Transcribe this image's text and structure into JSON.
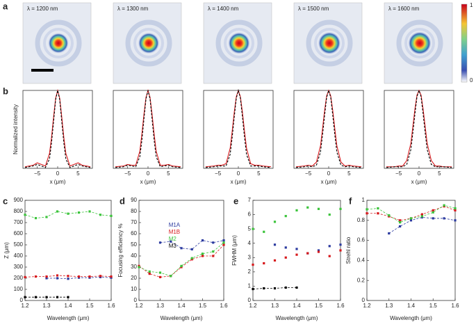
{
  "panel_a": {
    "letter": "a",
    "images": [
      {
        "label": "λ = 1200 nm"
      },
      {
        "label": "λ = 1300 nm"
      },
      {
        "label": "λ = 1400 nm"
      },
      {
        "label": "λ = 1500 nm"
      },
      {
        "label": "λ = 1600 nm"
      }
    ],
    "colorbar": {
      "max": 1,
      "min": 0
    }
  },
  "chart_data": [
    {
      "type": "line",
      "panel": "b",
      "ylabel": "Normalized intensity",
      "xlabel": "x (μm)",
      "xlim": [
        -8.5,
        8.5
      ],
      "ylim": [
        0,
        1
      ],
      "xticks": [
        {
          "value": -5,
          "label": "−5"
        },
        0,
        5
      ],
      "x": [
        -8,
        -6,
        -5,
        -4,
        -3,
        -2,
        -1.5,
        -1,
        -0.5,
        0,
        0.5,
        1,
        1.5,
        2,
        3,
        4,
        5,
        6,
        8
      ],
      "series": [
        {
          "color": "#d7191c",
          "linestyle": "solid",
          "values": [
            0.02,
            0.04,
            0.07,
            0.05,
            0.03,
            0.19,
            0.4,
            0.66,
            0.9,
            1,
            0.9,
            0.66,
            0.4,
            0.19,
            0.03,
            0.05,
            0.07,
            0.04,
            0.02
          ]
        },
        {
          "color": "#000000",
          "linestyle": "dashed",
          "values": [
            0.01,
            0.03,
            0.05,
            0.03,
            0.01,
            0.12,
            0.33,
            0.6,
            0.88,
            1,
            0.88,
            0.6,
            0.33,
            0.12,
            0.01,
            0.03,
            0.05,
            0.03,
            0.01
          ]
        }
      ]
    },
    {
      "type": "line",
      "xlabel": "x (μm)",
      "xlim": [
        -8.5,
        8.5
      ],
      "ylim": [
        0,
        1
      ],
      "xticks": [
        {
          "value": -5,
          "label": "−5"
        },
        0,
        5
      ],
      "x": [
        -8,
        -6,
        -5,
        -4,
        -3,
        -2,
        -1.5,
        -1,
        -0.5,
        0,
        0.5,
        1,
        1.5,
        2,
        3,
        4,
        5,
        6,
        8
      ],
      "series": [
        {
          "color": "#d7191c",
          "linestyle": "solid",
          "values": [
            0.02,
            0.03,
            0.05,
            0.04,
            0.04,
            0.22,
            0.44,
            0.69,
            0.91,
            1,
            0.91,
            0.69,
            0.44,
            0.22,
            0.04,
            0.04,
            0.05,
            0.03,
            0.02
          ]
        },
        {
          "color": "#000000",
          "linestyle": "dashed",
          "values": [
            0.01,
            0.02,
            0.04,
            0.03,
            0.02,
            0.15,
            0.36,
            0.63,
            0.89,
            1,
            0.89,
            0.63,
            0.36,
            0.15,
            0.02,
            0.03,
            0.04,
            0.02,
            0.01
          ]
        }
      ]
    },
    {
      "type": "line",
      "xlabel": "x (μm)",
      "xlim": [
        -8.5,
        8.5
      ],
      "ylim": [
        0,
        1
      ],
      "xticks": [
        {
          "value": -5,
          "label": "−5"
        },
        0,
        5
      ],
      "x": [
        -8,
        -6,
        -5,
        -4,
        -3,
        -2,
        -1.5,
        -1,
        -0.5,
        0,
        0.5,
        1,
        1.5,
        2,
        3,
        4,
        5,
        6,
        8
      ],
      "series": [
        {
          "color": "#d7191c",
          "linestyle": "solid",
          "values": [
            0.02,
            0.03,
            0.04,
            0.04,
            0.06,
            0.26,
            0.48,
            0.72,
            0.92,
            1,
            0.92,
            0.72,
            0.48,
            0.26,
            0.06,
            0.04,
            0.04,
            0.03,
            0.02
          ]
        },
        {
          "color": "#000000",
          "linestyle": "dashed",
          "values": [
            0.01,
            0.02,
            0.03,
            0.03,
            0.03,
            0.18,
            0.4,
            0.66,
            0.9,
            1,
            0.9,
            0.66,
            0.4,
            0.18,
            0.03,
            0.03,
            0.03,
            0.02,
            0.01
          ]
        }
      ]
    },
    {
      "type": "line",
      "xlabel": "x (μm)",
      "xlim": [
        -8.5,
        8.5
      ],
      "ylim": [
        0,
        1
      ],
      "xticks": [
        {
          "value": -5,
          "label": "−5"
        },
        0,
        5
      ],
      "x": [
        -8,
        -6,
        -5,
        -4,
        -3,
        -2,
        -1.5,
        -1,
        -0.5,
        0,
        0.5,
        1,
        1.5,
        2,
        3,
        4,
        5,
        6,
        8
      ],
      "series": [
        {
          "color": "#d7191c",
          "linestyle": "solid",
          "values": [
            0.02,
            0.03,
            0.04,
            0.03,
            0.08,
            0.29,
            0.51,
            0.74,
            0.93,
            1,
            0.93,
            0.74,
            0.51,
            0.29,
            0.08,
            0.03,
            0.04,
            0.03,
            0.02
          ]
        },
        {
          "color": "#000000",
          "linestyle": "dashed",
          "values": [
            0.01,
            0.02,
            0.03,
            0.02,
            0.04,
            0.21,
            0.43,
            0.68,
            0.91,
            1,
            0.91,
            0.68,
            0.43,
            0.21,
            0.04,
            0.02,
            0.03,
            0.02,
            0.01
          ]
        }
      ]
    },
    {
      "type": "line",
      "xlabel": "x (μm)",
      "xlim": [
        -8.5,
        8.5
      ],
      "ylim": [
        0,
        1
      ],
      "xticks": [
        {
          "value": -5,
          "label": "−5"
        },
        0,
        5
      ],
      "x": [
        -8,
        -6,
        -5,
        -4,
        -3,
        -2,
        -1.5,
        -1,
        -0.5,
        0,
        0.5,
        1,
        1.5,
        2,
        3,
        4,
        5,
        6,
        8
      ],
      "series": [
        {
          "color": "#d7191c",
          "linestyle": "solid",
          "values": [
            0.02,
            0.02,
            0.03,
            0.03,
            0.1,
            0.32,
            0.54,
            0.76,
            0.94,
            1,
            0.94,
            0.76,
            0.54,
            0.32,
            0.1,
            0.03,
            0.03,
            0.02,
            0.02
          ]
        },
        {
          "color": "#000000",
          "linestyle": "dashed",
          "values": [
            0.01,
            0.02,
            0.02,
            0.02,
            0.05,
            0.24,
            0.46,
            0.7,
            0.92,
            1,
            0.92,
            0.7,
            0.46,
            0.24,
            0.05,
            0.02,
            0.02,
            0.02,
            0.01
          ]
        }
      ]
    },
    {
      "type": "line",
      "panel": "c",
      "ylabel": "Z (μm)",
      "xlabel": "Wavelength (μm)",
      "markers": true,
      "xlim": [
        1.2,
        1.6
      ],
      "ylim": [
        0,
        900
      ],
      "xticks": [
        1.2,
        1.3,
        1.4,
        1.5,
        1.6
      ],
      "yticks": [
        0,
        100,
        200,
        300,
        400,
        500,
        600,
        700,
        800,
        900
      ],
      "x": [
        1.2,
        1.25,
        1.3,
        1.35,
        1.4,
        1.45,
        1.5,
        1.55,
        1.6
      ],
      "series": [
        {
          "color": "#2b3a9f",
          "linestyle": "dashed",
          "values": [
            null,
            null,
            200,
            200,
            195,
            205,
            205,
            210,
            205
          ]
        },
        {
          "color": "#d7191c",
          "linestyle": "dashed",
          "values": [
            210,
            215,
            215,
            225,
            220,
            215,
            215,
            220,
            215
          ]
        },
        {
          "color": "#3cc43c",
          "linestyle": "dashed",
          "values": [
            770,
            740,
            750,
            800,
            780,
            790,
            800,
            770,
            760
          ]
        },
        {
          "color": "#000000",
          "linestyle": "dashed",
          "values": [
            30,
            30,
            30,
            30,
            30,
            null,
            null,
            null,
            null
          ]
        }
      ]
    },
    {
      "type": "line",
      "panel": "d",
      "ylabel": "Focusing efficiency %",
      "xlabel": "Wavelength (μm)",
      "markers": true,
      "legend": "upper left",
      "xlim": [
        1.2,
        1.6
      ],
      "ylim": [
        0,
        90
      ],
      "xticks": [
        1.2,
        1.3,
        1.4,
        1.5,
        1.6
      ],
      "yticks": [
        0,
        10,
        20,
        30,
        40,
        50,
        60,
        70,
        80,
        90
      ],
      "x": [
        1.2,
        1.25,
        1.3,
        1.35,
        1.4,
        1.45,
        1.5,
        1.55,
        1.6
      ],
      "series": [
        {
          "name": "M1A",
          "color": "#2b3a9f",
          "linestyle": "dashed",
          "values": [
            null,
            null,
            52,
            53,
            47,
            46,
            54,
            52,
            54
          ]
        },
        {
          "name": "M1B",
          "color": "#d7191c",
          "linestyle": "dashed",
          "values": [
            31,
            24,
            21,
            22,
            30,
            37,
            40,
            40,
            50
          ]
        },
        {
          "name": "M2",
          "color": "#3cc43c",
          "linestyle": "dashed",
          "values": [
            30,
            26,
            25,
            22,
            31,
            38,
            42,
            44,
            52
          ]
        },
        {
          "name": "M3",
          "color": "#000000",
          "linestyle": "dashed",
          "values": [
            null,
            null,
            null,
            null,
            null,
            null,
            null,
            null,
            null
          ]
        }
      ]
    },
    {
      "type": "line",
      "panel": "e",
      "ylabel": "FWHM (μm)",
      "xlabel": "Wavelength (μm)",
      "markers": true,
      "xlim": [
        1.2,
        1.6
      ],
      "ylim": [
        0,
        7
      ],
      "xticks": [
        1.2,
        1.3,
        1.4,
        1.5,
        1.6
      ],
      "yticks": [
        0,
        1,
        2,
        3,
        4,
        5,
        6,
        7
      ],
      "x": [
        1.2,
        1.25,
        1.3,
        1.35,
        1.4,
        1.45,
        1.5,
        1.55,
        1.6
      ],
      "series": [
        {
          "color": "#2b3a9f",
          "linestyle": "none",
          "values": [
            null,
            null,
            3.9,
            3.7,
            3.6,
            3.3,
            3.5,
            3.8,
            3.9
          ]
        },
        {
          "color": "#d7191c",
          "linestyle": "none",
          "values": [
            2.5,
            2.6,
            2.8,
            3.0,
            3.2,
            3.3,
            3.4,
            3.1,
            3.5
          ]
        },
        {
          "color": "#3cc43c",
          "linestyle": "none",
          "values": [
            5.0,
            4.8,
            5.5,
            5.9,
            6.3,
            6.5,
            6.4,
            6.0,
            6.4
          ]
        },
        {
          "color": "#000000",
          "linestyle": "dashed",
          "values": [
            0.8,
            0.85,
            0.85,
            0.9,
            0.9,
            null,
            null,
            null,
            null
          ]
        }
      ]
    },
    {
      "type": "line",
      "panel": "f",
      "ylabel": "Strehl ratio",
      "xlabel": "Wavelength (μm)",
      "markers": true,
      "xlim": [
        1.2,
        1.6
      ],
      "ylim": [
        0,
        1
      ],
      "xticks": [
        1.2,
        1.3,
        1.4,
        1.5,
        1.6
      ],
      "yticks": [
        0,
        0.2,
        0.4,
        0.6,
        0.8,
        1
      ],
      "x": [
        1.2,
        1.25,
        1.3,
        1.35,
        1.4,
        1.45,
        1.5,
        1.55,
        1.6
      ],
      "series": [
        {
          "color": "#2b3a9f",
          "linestyle": "dashed",
          "values": [
            null,
            null,
            0.67,
            0.74,
            0.8,
            0.83,
            0.82,
            0.82,
            0.8
          ]
        },
        {
          "color": "#d7191c",
          "linestyle": "dashed",
          "values": [
            0.87,
            0.87,
            0.84,
            0.8,
            0.82,
            0.86,
            0.9,
            0.94,
            0.9
          ]
        },
        {
          "color": "#3cc43c",
          "linestyle": "dashed",
          "values": [
            0.91,
            0.92,
            0.85,
            0.78,
            0.82,
            0.84,
            0.88,
            0.95,
            0.92
          ]
        }
      ]
    }
  ]
}
